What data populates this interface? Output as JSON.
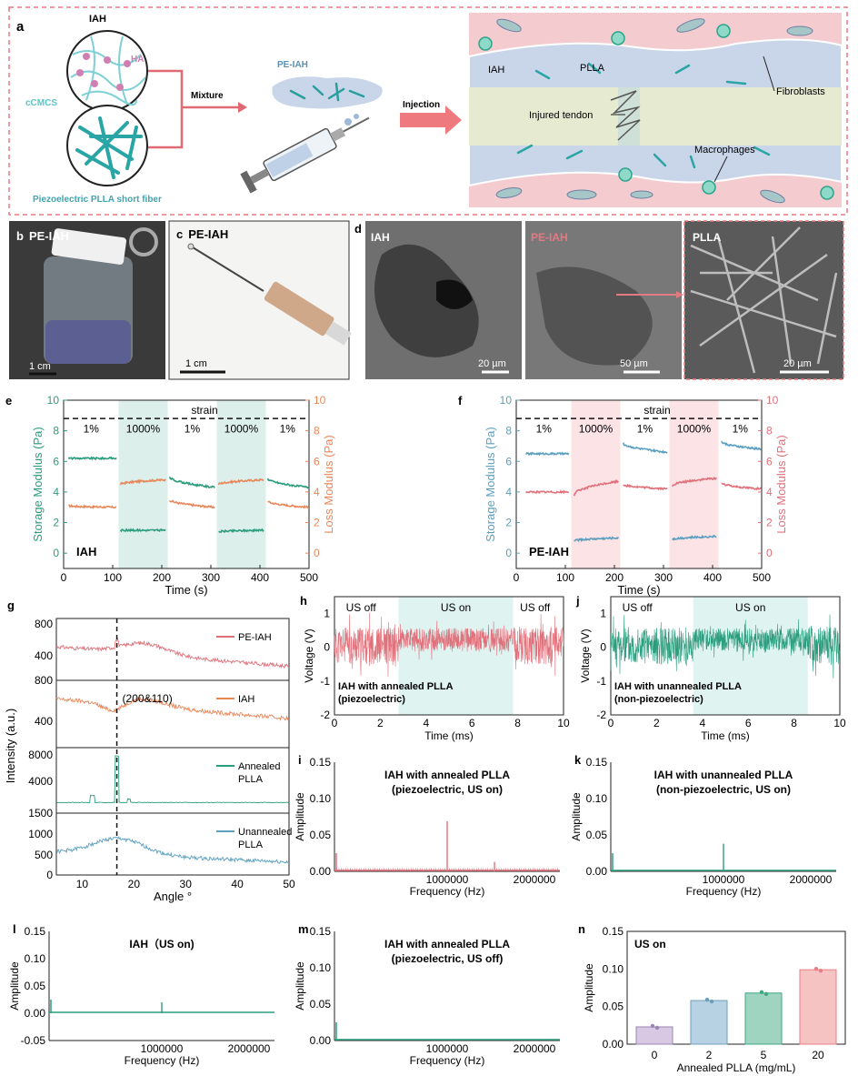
{
  "colors": {
    "green": "#2a9d7d",
    "orange": "#e8875a",
    "blue": "#5a9fbf",
    "red": "#e0707a",
    "pink_band": "#fbe3e6",
    "green_band": "#dcefea",
    "cyan": "#5bc4c9",
    "dashed_border": "#e8797f"
  },
  "panel_a": {
    "letter": "a",
    "iah": "IAH",
    "ha": "HA",
    "cmcs": "cCMCS",
    "pl_fiber": "Piezoelectric PLLA short fiber",
    "mixture": "Mixture",
    "pe_iah": "PE-IAH",
    "injection": "Injection",
    "scene": {
      "iah": "IAH",
      "plla": "PLLA",
      "fibroblasts": "Fibroblasts",
      "injured": "Injured tendon",
      "macrophages": "Macrophages"
    }
  },
  "panel_b": {
    "letter": "b",
    "title": "PE-IAH",
    "scale": "1 cm"
  },
  "panel_c": {
    "letter": "c",
    "title": "PE-IAH",
    "scale": "1 cm"
  },
  "panel_d": {
    "letter": "d",
    "sem": [
      {
        "label": "IAH",
        "scale": "20 µm"
      },
      {
        "label": "PE-IAH",
        "scale": "50 µm"
      },
      {
        "label": "PLLA",
        "scale": "20 µm"
      }
    ]
  },
  "panel_e": {
    "letter": "e",
    "name": "IAH",
    "ylabel_left": "Storage Modulus (Pa)",
    "ylabel_right": "Loss Modulus (Pa)",
    "xlabel": "Time (s)",
    "strain": "strain",
    "segments": [
      "1%",
      "1000%",
      "1%",
      "1000%",
      "1%"
    ],
    "yticks": [
      "0",
      "2",
      "4",
      "6",
      "8",
      "10"
    ],
    "xticks": [
      "0",
      "100",
      "200",
      "300",
      "400",
      "500"
    ]
  },
  "panel_f": {
    "letter": "f",
    "name": "PE-IAH",
    "ylabel_left": "Storage Modulus (Pa)",
    "ylabel_right": "Loss Modulus (Pa)",
    "xlabel": "Time (s)",
    "strain": "strain",
    "segments": [
      "1%",
      "1000%",
      "1%",
      "1000%",
      "1%"
    ],
    "yticks": [
      "0",
      "2",
      "4",
      "6",
      "8",
      "10"
    ],
    "xticks": [
      "0",
      "100",
      "200",
      "300",
      "400",
      "500"
    ]
  },
  "panel_g": {
    "letter": "g",
    "ylabel": "Intensity (a.u.)",
    "xlabel": "Angle °",
    "peak": "(200&110)",
    "xticks": [
      "10",
      "20",
      "30",
      "40",
      "50"
    ],
    "traces": [
      {
        "name": "PE-IAH",
        "ticks": [
          "800",
          "400",
          "800"
        ]
      },
      {
        "name": "IAH",
        "ticks": [
          "400"
        ]
      },
      {
        "name": "Annealed",
        "name2": "PLLA",
        "ticks": [
          "8000",
          "4000",
          "1500"
        ]
      },
      {
        "name": "Unannealed",
        "name2": "PLLA",
        "ticks": [
          "1000",
          "500",
          "0"
        ]
      }
    ]
  },
  "panel_h": {
    "letter": "h",
    "ylabel": "Voltage (V)",
    "xlabel": "Time (ms)",
    "off1": "US off",
    "on": "US on",
    "off2": "US off",
    "note1": "IAH with annealed PLLA",
    "note2": "(piezoelectric)",
    "yticks": [
      "-2",
      "-1",
      "0",
      "1"
    ],
    "xticks": [
      "0",
      "2",
      "4",
      "6",
      "8",
      "10"
    ]
  },
  "panel_j": {
    "letter": "j",
    "ylabel": "Voltage (V)",
    "xlabel": "Time (ms)",
    "off1": "US off",
    "on": "US on",
    "note1": "IAH with unannealed PLLA",
    "note2": "(non-piezoelectric)",
    "yticks": [
      "-2",
      "-1",
      "0",
      "1"
    ],
    "xticks": [
      "0",
      "2",
      "4",
      "6",
      "8",
      "10"
    ]
  },
  "panel_i": {
    "letter": "i",
    "t1": "IAH with annealed PLLA",
    "t2": "(piezoelectric, US on)",
    "ylabel": "Amplitude",
    "xlabel": "Frequency (Hz)",
    "yticks": [
      "0.00",
      "0.05",
      "0.10",
      "0.15"
    ],
    "xticks": [
      "1000000",
      "2000000"
    ]
  },
  "panel_k": {
    "letter": "k",
    "t1": "IAH with unannealed PLLA",
    "t2": "(non-piezoelectric, US on)",
    "ylabel": "Amplitude",
    "xlabel": "Frequency (Hz)",
    "yticks": [
      "0.00",
      "0.05",
      "0.10",
      "0.15"
    ],
    "xticks": [
      "1000000",
      "2000000"
    ]
  },
  "panel_l": {
    "letter": "l",
    "t1": "IAH（US on)",
    "ylabel": "Amplitude",
    "xlabel": "Frequency (Hz)",
    "yticks": [
      "-0.05",
      "0.00",
      "0.05",
      "0.10",
      "0.15"
    ],
    "xticks": [
      "1000000",
      "2000000"
    ]
  },
  "panel_m": {
    "letter": "m",
    "t1": "IAH with annealed PLLA",
    "t2": "(piezoelectric, US off)",
    "ylabel": "Amplitude",
    "xlabel": "Frequency (Hz)",
    "yticks": [
      "0.00",
      "0.05",
      "0.10",
      "0.15"
    ],
    "xticks": [
      "1000000",
      "2000000"
    ]
  },
  "panel_n": {
    "letter": "n",
    "label": "US on",
    "ylabel": "Amplitude",
    "xlabel": "Annealed PLLA (mg/mL)",
    "yticks": [
      "0.00",
      "0.05",
      "0.10",
      "0.15"
    ]
  },
  "chart_data": [
    {
      "panel": "e",
      "type": "line",
      "xlim": [
        0,
        500
      ],
      "ylim_left": [
        -1,
        10
      ],
      "ylim_right": [
        -1,
        10
      ],
      "strain_segments": [
        {
          "label": "1%",
          "x": [
            0,
            112
          ]
        },
        {
          "label": "1000%",
          "x": [
            112,
            212
          ]
        },
        {
          "label": "1%",
          "x": [
            212,
            312
          ]
        },
        {
          "label": "1000%",
          "x": [
            312,
            412
          ]
        },
        {
          "label": "1%",
          "x": [
            412,
            500
          ]
        }
      ],
      "series": [
        {
          "name": "Storage Modulus",
          "axis": "left",
          "color": "green",
          "segments": [
            [
              10,
              108,
              6.2,
              6.2
            ],
            [
              116,
              208,
              1.5,
              1.5
            ],
            [
              216,
              308,
              5.0,
              4.3
            ],
            [
              316,
              408,
              1.4,
              1.5
            ],
            [
              416,
              500,
              4.9,
              4.3
            ]
          ]
        },
        {
          "name": "Loss Modulus",
          "axis": "right",
          "color": "orange",
          "segments": [
            [
              10,
              108,
              3.1,
              3.0
            ],
            [
              116,
              208,
              4.5,
              4.8
            ],
            [
              216,
              308,
              3.5,
              3.0
            ],
            [
              316,
              408,
              4.5,
              4.8
            ],
            [
              416,
              500,
              3.4,
              3.0
            ]
          ]
        }
      ]
    },
    {
      "panel": "f",
      "type": "line",
      "xlim": [
        0,
        500
      ],
      "ylim_left": [
        -1,
        10
      ],
      "ylim_right": [
        -1,
        10
      ],
      "series": [
        {
          "name": "Storage Modulus",
          "axis": "left",
          "color": "blue",
          "segments": [
            [
              20,
              108,
              6.5,
              6.5
            ],
            [
              118,
              208,
              0.8,
              1.0
            ],
            [
              218,
              308,
              7.2,
              6.6
            ],
            [
              318,
              408,
              0.9,
              1.1
            ],
            [
              418,
              500,
              7.3,
              6.8
            ]
          ]
        },
        {
          "name": "Loss Modulus",
          "axis": "right",
          "color": "red",
          "segments": [
            [
              20,
              108,
              4.0,
              4.0
            ],
            [
              118,
              208,
              3.8,
              4.7
            ],
            [
              218,
              308,
              4.5,
              4.2
            ],
            [
              318,
              408,
              4.4,
              4.9
            ],
            [
              418,
              500,
              4.6,
              4.2
            ]
          ]
        }
      ]
    },
    {
      "panel": "g",
      "type": "line",
      "xlim": [
        5,
        50
      ],
      "peak_x": 16.7,
      "traces": [
        "PE-IAH",
        "IAH",
        "Annealed PLLA",
        "Unannealed PLLA"
      ]
    },
    {
      "panel": "h",
      "type": "line",
      "xlim": [
        0,
        10
      ],
      "ylim": [
        -2,
        1.5
      ],
      "us_on_range": [
        2.8,
        7.8
      ]
    },
    {
      "panel": "j",
      "type": "line",
      "xlim": [
        0,
        10
      ],
      "ylim": [
        -2,
        1.5
      ],
      "us_on_range": [
        3.6,
        8.6
      ]
    },
    {
      "panel": "i",
      "type": "bar",
      "xlim": [
        0,
        2000000
      ],
      "ylim": [
        0,
        0.15
      ],
      "peaks": [
        {
          "x": 1000000,
          "y": 0.069
        },
        {
          "x": 1420000,
          "y": 0.013
        }
      ]
    },
    {
      "panel": "k",
      "type": "bar",
      "xlim": [
        0,
        2000000
      ],
      "ylim": [
        0,
        0.15
      ],
      "peaks": [
        {
          "x": 1000000,
          "y": 0.038
        }
      ]
    },
    {
      "panel": "l",
      "type": "bar",
      "xlim": [
        0,
        2000000
      ],
      "ylim": [
        -0.05,
        0.15
      ],
      "peaks": [
        {
          "x": 1000000,
          "y": 0.02
        }
      ]
    },
    {
      "panel": "m",
      "type": "bar",
      "xlim": [
        0,
        2000000
      ],
      "ylim": [
        0,
        0.15
      ],
      "peaks": []
    },
    {
      "panel": "n",
      "type": "bar",
      "categories": [
        "0",
        "2",
        "5",
        "20"
      ],
      "values": [
        0.023,
        0.058,
        0.068,
        0.099
      ],
      "ylim": [
        0,
        0.15
      ],
      "xlabel": "Annealed PLLA (mg/mL)",
      "ylabel": "Amplitude"
    }
  ]
}
